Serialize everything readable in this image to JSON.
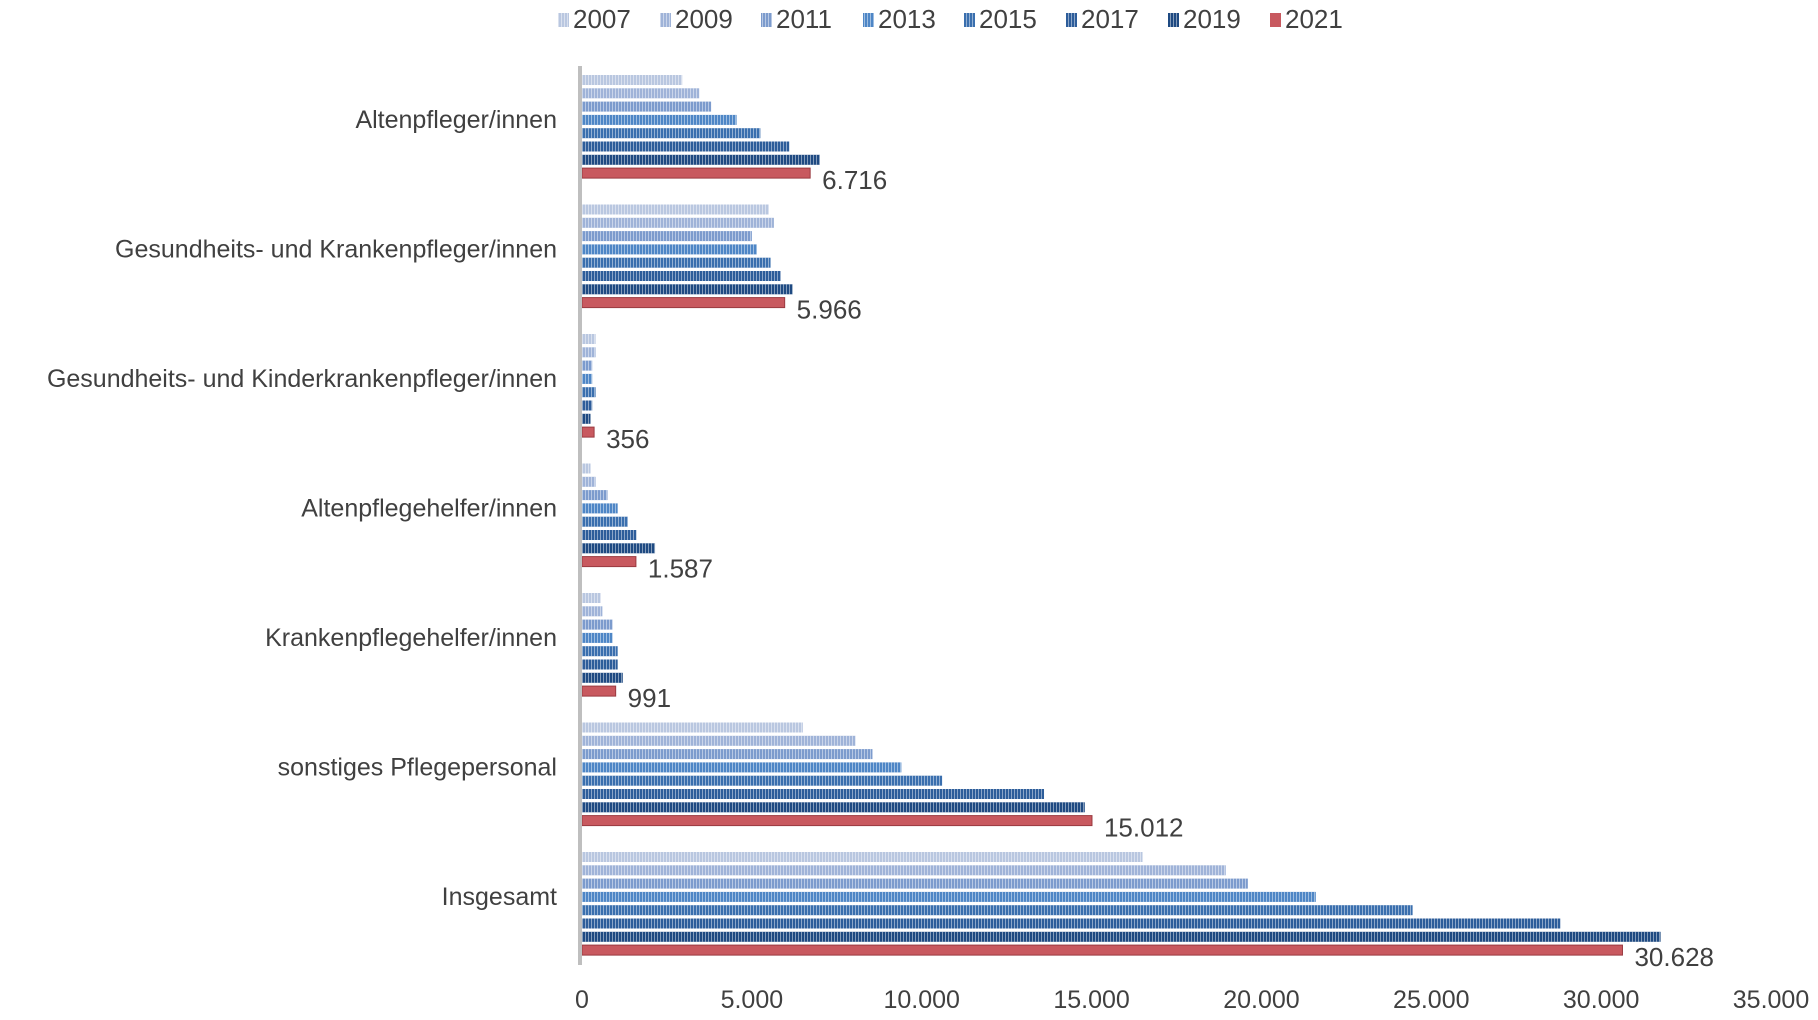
{
  "chart_data": {
    "type": "bar",
    "orientation": "horizontal",
    "categories": [
      "Altenpfleger/innen",
      "Gesundheits- und Krankenpfleger/innen",
      "Gesundheits- und Kinderkrankenpfleger/innen",
      "Altenpflegehelfer/innen",
      "Krankenpflegehelfer/innen",
      "sonstiges Pflegepersonal",
      "Insgesamt"
    ],
    "series": [
      {
        "name": "2007",
        "color": "#b9c7e0",
        "values": [
          2950,
          5500,
          400,
          250,
          550,
          6500,
          16500
        ]
      },
      {
        "name": "2009",
        "color": "#9fb3d8",
        "values": [
          3450,
          5650,
          400,
          400,
          600,
          8050,
          18950
        ]
      },
      {
        "name": "2011",
        "color": "#7c9bcd",
        "values": [
          3800,
          5000,
          300,
          750,
          900,
          8550,
          19600
        ]
      },
      {
        "name": "2013",
        "color": "#4e86c6",
        "values": [
          4550,
          5150,
          300,
          1050,
          900,
          9400,
          21600
        ]
      },
      {
        "name": "2015",
        "color": "#3a6fae",
        "values": [
          5250,
          5550,
          400,
          1350,
          1050,
          10600,
          24450
        ]
      },
      {
        "name": "2017",
        "color": "#2d5d9a",
        "values": [
          6100,
          5850,
          300,
          1600,
          1050,
          13600,
          28800
        ]
      },
      {
        "name": "2019",
        "color": "#1f4a82",
        "values": [
          7000,
          6200,
          250,
          2150,
          1200,
          14800,
          31750
        ]
      },
      {
        "name": "2021",
        "color": "#c8595f",
        "values": [
          6716,
          5966,
          356,
          1587,
          991,
          15012,
          30628
        ]
      }
    ],
    "data_labels": [
      "6.716",
      "5.966",
      "356",
      "1.587",
      "991",
      "15.012",
      "30.628"
    ],
    "x_ticks": [
      "0",
      "5.000",
      "10.000",
      "15.000",
      "20.000",
      "25.000",
      "30.000",
      "35.000"
    ],
    "xlim": [
      0,
      35000
    ],
    "legend_position": "top",
    "grid": false
  }
}
